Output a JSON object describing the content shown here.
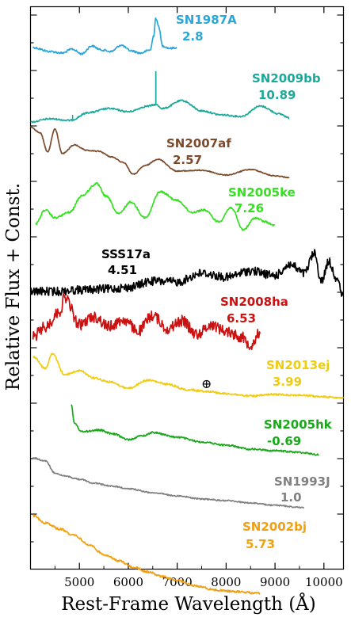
{
  "chart_data": {
    "type": "line",
    "xlabel": "Rest-Frame Wavelength (Å)",
    "ylabel": "Relative Flux + Const.",
    "xlim": [
      4000,
      10400
    ],
    "x_ticks": [
      5000,
      6000,
      7000,
      8000,
      9000,
      10000
    ],
    "x_tick_labels": [
      "5000",
      "6000",
      "7000",
      "8000",
      "9000",
      "10000"
    ],
    "grid": false,
    "telluric_marker": {
      "symbol": "⊕",
      "x": 7600,
      "series": "SN2013ej"
    },
    "series": [
      {
        "name": "SN1987A",
        "value_label": "2.8",
        "color": "#2aa6d8",
        "x": [
          4050,
          4400,
          4650,
          4850,
          5050,
          5250,
          5450,
          5650,
          5850,
          6050,
          6250,
          6450,
          6520,
          6560,
          6620,
          6700,
          6850,
          7000
        ],
        "y": [
          60,
          65,
          67,
          62,
          68,
          58,
          63,
          65,
          57,
          64,
          67,
          63,
          45,
          23,
          33,
          58,
          61,
          60
        ]
      },
      {
        "name": "SN2009bb",
        "value_label": "10.89",
        "color": "#1aa99a",
        "x": [
          4000,
          4400,
          4800,
          5200,
          5600,
          6000,
          6400,
          6560,
          6700,
          7100,
          7500,
          7900,
          8300,
          8700,
          9100,
          9300
        ],
        "y": [
          154,
          150,
          152,
          142,
          137,
          141,
          134,
          132,
          137,
          127,
          140,
          145,
          147,
          134,
          144,
          149
        ]
      },
      {
        "name": "SN2007af",
        "value_label": "2.57",
        "color": "#7a4a2a",
        "x": [
          4000,
          4200,
          4350,
          4500,
          4650,
          4900,
          5150,
          5400,
          5650,
          5900,
          6100,
          6350,
          6600,
          7000,
          7500,
          8000,
          8500,
          9000,
          9300
        ],
        "y": [
          160,
          168,
          192,
          163,
          194,
          183,
          190,
          191,
          198,
          205,
          220,
          209,
          201,
          216,
          215,
          221,
          214,
          222,
          224
        ]
      },
      {
        "name": "SN2005ke",
        "value_label": "7.26",
        "color": "#35e020",
        "x": [
          4100,
          4300,
          4500,
          4800,
          5050,
          5350,
          5550,
          5800,
          6050,
          6350,
          6650,
          7000,
          7300,
          7550,
          7850,
          8100,
          8350,
          8600,
          8800,
          9000
        ],
        "y": [
          283,
          265,
          275,
          268,
          247,
          232,
          248,
          270,
          255,
          275,
          242,
          253,
          268,
          265,
          280,
          262,
          290,
          275,
          280,
          285
        ]
      },
      {
        "name": "SSS17a",
        "value_label": "4.51",
        "color": "#000000",
        "x": [
          4000,
          4500,
          5000,
          5500,
          6000,
          6500,
          7000,
          7500,
          8000,
          8500,
          9000,
          9300,
          9600,
          9800,
          9950,
          10100,
          10250,
          10400
        ],
        "y": [
          368,
          368,
          366,
          365,
          363,
          355,
          356,
          345,
          350,
          342,
          348,
          334,
          345,
          320,
          355,
          330,
          350,
          375
        ]
      },
      {
        "name": "SN2008ha",
        "value_label": "6.53",
        "color": "#cc1111",
        "x": [
          4050,
          4300,
          4600,
          4700,
          5000,
          5300,
          5600,
          5900,
          6200,
          6500,
          6800,
          7100,
          7400,
          7700,
          8000,
          8300,
          8500,
          8700
        ],
        "y": [
          425,
          413,
          393,
          375,
          410,
          400,
          412,
          404,
          418,
          398,
          415,
          405,
          422,
          410,
          418,
          425,
          435,
          420
        ]
      },
      {
        "name": "SN2013ej",
        "value_label": "3.99",
        "color": "#f0cc10",
        "x": [
          4050,
          4300,
          4450,
          4700,
          5000,
          5300,
          5600,
          6000,
          6400,
          6800,
          7200,
          7600,
          8000,
          8500,
          9000,
          9500,
          10000,
          10400
        ],
        "y": [
          450,
          465,
          447,
          473,
          468,
          477,
          482,
          490,
          480,
          485,
          492,
          494,
          497,
          500,
          498,
          499,
          501,
          502
        ]
      },
      {
        "name": "SN2005hk",
        "value_label": "-0.69",
        "color": "#1aa81a",
        "x": [
          4830,
          4900,
          5050,
          5400,
          5700,
          6000,
          6300,
          6500,
          7000,
          7500,
          8000,
          8500,
          9000,
          9500,
          9900
        ],
        "y": [
          510,
          535,
          545,
          543,
          548,
          555,
          550,
          546,
          552,
          558,
          562,
          567,
          569,
          571,
          574
        ]
      },
      {
        "name": "SN1993J",
        "value_label": "1.0",
        "color": "#808080",
        "x": [
          4050,
          4300,
          4500,
          4700,
          5000,
          5300,
          5700,
          6000,
          6500,
          7000,
          7500,
          8000,
          8500,
          9000,
          9600
        ],
        "y": [
          578,
          582,
          597,
          601,
          605,
          610,
          614,
          617,
          622,
          626,
          630,
          632,
          635,
          638,
          641
        ]
      },
      {
        "name": "SN2002bj",
        "value_label": "5.73",
        "color": "#f0a010",
        "x": [
          4050,
          4300,
          4600,
          4900,
          5200,
          5500,
          5800,
          6100,
          6400,
          6700,
          7000,
          7400,
          7800,
          8200,
          8700
        ],
        "y": [
          651,
          660,
          668,
          676,
          688,
          700,
          708,
          716,
          722,
          728,
          733,
          740,
          745,
          747,
          749
        ]
      }
    ]
  }
}
